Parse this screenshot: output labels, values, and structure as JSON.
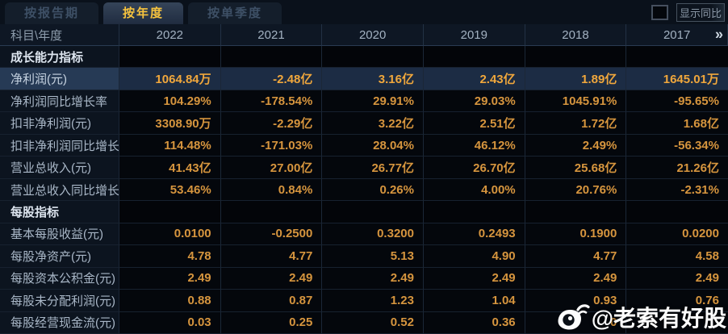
{
  "tabs": {
    "items": [
      {
        "label": "按报告期",
        "active": false
      },
      {
        "label": "按年度",
        "active": true
      },
      {
        "label": "按单季度",
        "active": false
      }
    ]
  },
  "controls": {
    "show_yoy_label": "显示同比",
    "checkbox_checked": false
  },
  "table": {
    "corner_header": "科目\\年度",
    "years": [
      "2022",
      "2021",
      "2020",
      "2019",
      "2018",
      "2017"
    ],
    "more_icon": "»",
    "rows": [
      {
        "type": "section",
        "label": "成长能力指标",
        "values": [
          "",
          "",
          "",
          "",
          "",
          ""
        ]
      },
      {
        "type": "data",
        "highlight": true,
        "label": "净利润(元)",
        "values": [
          "1064.84万",
          "-2.48亿",
          "3.16亿",
          "2.43亿",
          "1.89亿",
          "1645.01万"
        ]
      },
      {
        "type": "data",
        "highlight": false,
        "label": "净利润同比增长率",
        "values": [
          "104.29%",
          "-178.54%",
          "29.91%",
          "29.03%",
          "1045.91%",
          "-95.65%"
        ]
      },
      {
        "type": "data",
        "highlight": false,
        "label": "扣非净利润(元)",
        "values": [
          "3308.90万",
          "-2.29亿",
          "3.22亿",
          "2.51亿",
          "1.72亿",
          "1.68亿"
        ]
      },
      {
        "type": "data",
        "highlight": false,
        "label": "扣非净利润同比增长率",
        "values": [
          "114.48%",
          "-171.03%",
          "28.04%",
          "46.12%",
          "2.49%",
          "-56.34%"
        ]
      },
      {
        "type": "data",
        "highlight": false,
        "label": "营业总收入(元)",
        "values": [
          "41.43亿",
          "27.00亿",
          "26.77亿",
          "26.70亿",
          "25.68亿",
          "21.26亿"
        ]
      },
      {
        "type": "data",
        "highlight": false,
        "label": "营业总收入同比增长率",
        "values": [
          "53.46%",
          "0.84%",
          "0.26%",
          "4.00%",
          "20.76%",
          "-2.31%"
        ]
      },
      {
        "type": "section",
        "label": "每股指标",
        "values": [
          "",
          "",
          "",
          "",
          "",
          ""
        ]
      },
      {
        "type": "data",
        "highlight": false,
        "label": "基本每股收益(元)",
        "values": [
          "0.0100",
          "-0.2500",
          "0.3200",
          "0.2493",
          "0.1900",
          "0.0200"
        ]
      },
      {
        "type": "data",
        "highlight": false,
        "label": "每股净资产(元)",
        "values": [
          "4.78",
          "4.77",
          "5.13",
          "4.90",
          "4.77",
          "4.58"
        ]
      },
      {
        "type": "data",
        "highlight": false,
        "label": "每股资本公积金(元)",
        "values": [
          "2.49",
          "2.49",
          "2.49",
          "2.49",
          "2.49",
          "2.49"
        ]
      },
      {
        "type": "data",
        "highlight": false,
        "label": "每股未分配利润(元)",
        "values": [
          "0.88",
          "0.87",
          "1.23",
          "1.04",
          "0.93",
          "0.76"
        ]
      },
      {
        "type": "data",
        "highlight": false,
        "label": "每股经营现金流(元)",
        "values": [
          "0.03",
          "0.25",
          "0.52",
          "0.36",
          "0",
          ""
        ]
      }
    ]
  },
  "watermark": {
    "text": "@老索有好股",
    "icon": "weibo-logo"
  },
  "colors": {
    "accent_gold": "#f6c33e",
    "value_orange": "#d6953e",
    "highlight_row_bg": "#1c2c44",
    "grid_line": "#1b2737",
    "background": "#060b12"
  }
}
